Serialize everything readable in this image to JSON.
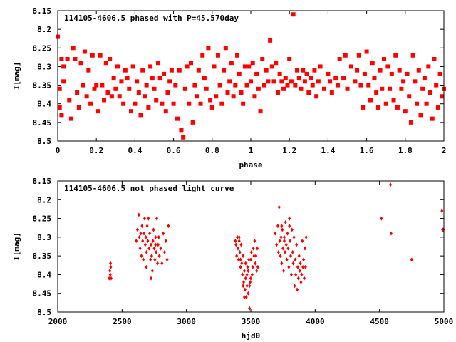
{
  "colors": {
    "points": "#ff0000",
    "axis": "#000000",
    "background": "#ffffff"
  },
  "chart_data": [
    {
      "type": "scatter",
      "title": "114105-4606.5 phased with P=45.570day",
      "xlabel": "phase",
      "ylabel": "I[mag]",
      "xlim": [
        0,
        2
      ],
      "ylim": [
        8.15,
        8.5
      ],
      "y_inverted": true,
      "grid": false,
      "x_ticks": [
        "0",
        "0.2",
        "0.4",
        "0.6",
        "0.8",
        "1",
        "1.2",
        "1.4",
        "1.6",
        "1.8",
        "2"
      ],
      "y_ticks": [
        "8.15",
        "8.2",
        "8.25",
        "8.3",
        "8.35",
        "8.4",
        "8.45",
        "8.5"
      ],
      "marker": "square",
      "points": [
        [
          0.0,
          8.22
        ],
        [
          0.01,
          8.36
        ],
        [
          0.01,
          8.41
        ],
        [
          0.02,
          8.28
        ],
        [
          0.02,
          8.43
        ],
        [
          0.03,
          8.3
        ],
        [
          0.03,
          8.34
        ],
        [
          0.05,
          8.28
        ],
        [
          0.06,
          8.39
        ],
        [
          0.07,
          8.44
        ],
        [
          0.08,
          8.25
        ],
        [
          0.09,
          8.28
        ],
        [
          0.1,
          8.37
        ],
        [
          0.11,
          8.41
        ],
        [
          0.12,
          8.29
        ],
        [
          0.13,
          8.35
        ],
        [
          0.14,
          8.26
        ],
        [
          0.15,
          8.38
        ],
        [
          0.16,
          8.31
        ],
        [
          0.17,
          8.4
        ],
        [
          0.18,
          8.27
        ],
        [
          0.19,
          8.36
        ],
        [
          0.2,
          8.35
        ],
        [
          0.21,
          8.42
        ],
        [
          0.22,
          8.27
        ],
        [
          0.23,
          8.35
        ],
        [
          0.24,
          8.39
        ],
        [
          0.25,
          8.29
        ],
        [
          0.26,
          8.37
        ],
        [
          0.27,
          8.28
        ],
        [
          0.28,
          8.38
        ],
        [
          0.29,
          8.33
        ],
        [
          0.3,
          8.36
        ],
        [
          0.31,
          8.3
        ],
        [
          0.32,
          8.38
        ],
        [
          0.33,
          8.34
        ],
        [
          0.34,
          8.4
        ],
        [
          0.35,
          8.31
        ],
        [
          0.36,
          8.33
        ],
        [
          0.37,
          8.36
        ],
        [
          0.38,
          8.42
        ],
        [
          0.39,
          8.3
        ],
        [
          0.4,
          8.4
        ],
        [
          0.41,
          8.34
        ],
        [
          0.42,
          8.37
        ],
        [
          0.43,
          8.43
        ],
        [
          0.44,
          8.31
        ],
        [
          0.45,
          8.38
        ],
        [
          0.46,
          8.35
        ],
        [
          0.47,
          8.41
        ],
        [
          0.48,
          8.3
        ],
        [
          0.49,
          8.33
        ],
        [
          0.5,
          8.36
        ],
        [
          0.51,
          8.39
        ],
        [
          0.52,
          8.29
        ],
        [
          0.53,
          8.33
        ],
        [
          0.54,
          8.4
        ],
        [
          0.55,
          8.32
        ],
        [
          0.56,
          8.42
        ],
        [
          0.57,
          8.37
        ],
        [
          0.58,
          8.34
        ],
        [
          0.59,
          8.31
        ],
        [
          0.6,
          8.4
        ],
        [
          0.61,
          8.35
        ],
        [
          0.62,
          8.44
        ],
        [
          0.63,
          8.31
        ],
        [
          0.64,
          8.47
        ],
        [
          0.65,
          8.49
        ],
        [
          0.66,
          8.36
        ],
        [
          0.67,
          8.3
        ],
        [
          0.68,
          8.4
        ],
        [
          0.69,
          8.29
        ],
        [
          0.7,
          8.45
        ],
        [
          0.71,
          8.35
        ],
        [
          0.72,
          8.38
        ],
        [
          0.73,
          8.31
        ],
        [
          0.74,
          8.4
        ],
        [
          0.75,
          8.27
        ],
        [
          0.76,
          8.33
        ],
        [
          0.77,
          8.36
        ],
        [
          0.78,
          8.25
        ],
        [
          0.79,
          8.39
        ],
        [
          0.8,
          8.41
        ],
        [
          0.81,
          8.3
        ],
        [
          0.82,
          8.38
        ],
        [
          0.83,
          8.27
        ],
        [
          0.84,
          8.35
        ],
        [
          0.85,
          8.4
        ],
        [
          0.86,
          8.31
        ],
        [
          0.87,
          8.25
        ],
        [
          0.88,
          8.37
        ],
        [
          0.89,
          8.34
        ],
        [
          0.9,
          8.29
        ],
        [
          0.91,
          8.38
        ],
        [
          0.92,
          8.35
        ],
        [
          0.93,
          8.27
        ],
        [
          0.94,
          8.32
        ],
        [
          0.95,
          8.37
        ],
        [
          0.96,
          8.4
        ],
        [
          0.97,
          8.3
        ],
        [
          0.98,
          8.35
        ],
        [
          0.99,
          8.3
        ],
        [
          1.0,
          8.34
        ],
        [
          1.01,
          8.29
        ],
        [
          1.02,
          8.38
        ],
        [
          1.03,
          8.32
        ],
        [
          1.04,
          8.36
        ],
        [
          1.05,
          8.42
        ],
        [
          1.06,
          8.28
        ],
        [
          1.07,
          8.35
        ],
        [
          1.08,
          8.31
        ],
        [
          1.09,
          8.34
        ],
        [
          1.1,
          8.23
        ],
        [
          1.11,
          8.3
        ],
        [
          1.12,
          8.34
        ],
        [
          1.13,
          8.29
        ],
        [
          1.14,
          8.37
        ],
        [
          1.15,
          8.32
        ],
        [
          1.16,
          8.34
        ],
        [
          1.17,
          8.36
        ],
        [
          1.18,
          8.33
        ],
        [
          1.19,
          8.35
        ],
        [
          1.2,
          8.28
        ],
        [
          1.21,
          8.34
        ],
        [
          1.22,
          8.16
        ],
        [
          1.23,
          8.35
        ],
        [
          1.24,
          8.31
        ],
        [
          1.25,
          8.33
        ],
        [
          1.26,
          8.36
        ],
        [
          1.27,
          8.31
        ],
        [
          1.28,
          8.34
        ],
        [
          1.29,
          8.32
        ],
        [
          1.3,
          8.37
        ],
        [
          1.31,
          8.33
        ],
        [
          1.32,
          8.35
        ],
        [
          1.33,
          8.31
        ],
        [
          1.34,
          8.38
        ],
        [
          1.35,
          8.34
        ],
        [
          1.36,
          8.3
        ],
        [
          1.38,
          8.36
        ],
        [
          1.4,
          8.32
        ],
        [
          1.41,
          8.34
        ],
        [
          1.42,
          8.37
        ],
        [
          1.44,
          8.33
        ],
        [
          1.45,
          8.35
        ],
        [
          1.46,
          8.28
        ],
        [
          1.48,
          8.33
        ],
        [
          1.49,
          8.27
        ],
        [
          1.5,
          8.36
        ],
        [
          1.52,
          8.3
        ],
        [
          1.54,
          8.34
        ],
        [
          1.55,
          8.31
        ],
        [
          1.56,
          8.27
        ],
        [
          1.57,
          8.35
        ],
        [
          1.58,
          8.41
        ],
        [
          1.59,
          8.32
        ],
        [
          1.6,
          8.26
        ],
        [
          1.61,
          8.35
        ],
        [
          1.62,
          8.39
        ],
        [
          1.63,
          8.29
        ],
        [
          1.64,
          8.33
        ],
        [
          1.65,
          8.37
        ],
        [
          1.66,
          8.41
        ],
        [
          1.67,
          8.31
        ],
        [
          1.68,
          8.36
        ],
        [
          1.69,
          8.28
        ],
        [
          1.7,
          8.4
        ],
        [
          1.71,
          8.3
        ],
        [
          1.72,
          8.36
        ],
        [
          1.73,
          8.32
        ],
        [
          1.74,
          8.39
        ],
        [
          1.75,
          8.27
        ],
        [
          1.76,
          8.41
        ],
        [
          1.77,
          8.31
        ],
        [
          1.78,
          8.36
        ],
        [
          1.79,
          8.34
        ],
        [
          1.8,
          8.42
        ],
        [
          1.81,
          8.32
        ],
        [
          1.82,
          8.38
        ],
        [
          1.83,
          8.45
        ],
        [
          1.84,
          8.27
        ],
        [
          1.85,
          8.34
        ],
        [
          1.86,
          8.4
        ],
        [
          1.87,
          8.31
        ],
        [
          1.88,
          8.43
        ],
        [
          1.89,
          8.36
        ],
        [
          1.9,
          8.33
        ],
        [
          1.91,
          8.4
        ],
        [
          1.92,
          8.3
        ],
        [
          1.93,
          8.37
        ],
        [
          1.94,
          8.44
        ],
        [
          1.95,
          8.28
        ],
        [
          1.96,
          8.35
        ],
        [
          1.97,
          8.41
        ],
        [
          1.98,
          8.32
        ],
        [
          1.99,
          8.38
        ],
        [
          2.0,
          8.36
        ]
      ]
    },
    {
      "type": "scatter",
      "title": "114105-4606.5 not phased light curve",
      "xlabel": "hjd0",
      "ylabel": "I[mag]",
      "xlim": [
        2000,
        5000
      ],
      "ylim": [
        8.15,
        8.5
      ],
      "y_inverted": true,
      "grid": false,
      "x_ticks": [
        "2000",
        "2500",
        "3000",
        "3500",
        "4000",
        "4500",
        "5000"
      ],
      "y_ticks": [
        "8.15",
        "8.2",
        "8.25",
        "8.3",
        "8.35",
        "8.4",
        "8.45",
        "8.5"
      ],
      "marker": "diamond",
      "points": [
        [
          2400,
          8.41
        ],
        [
          2405,
          8.39
        ],
        [
          2408,
          8.4
        ],
        [
          2410,
          8.37
        ],
        [
          2412,
          8.38
        ],
        [
          2415,
          8.41
        ],
        [
          2610,
          8.31
        ],
        [
          2620,
          8.28
        ],
        [
          2630,
          8.24
        ],
        [
          2635,
          8.3
        ],
        [
          2640,
          8.33
        ],
        [
          2645,
          8.29
        ],
        [
          2650,
          8.35
        ],
        [
          2655,
          8.27
        ],
        [
          2660,
          8.31
        ],
        [
          2665,
          8.36
        ],
        [
          2670,
          8.29
        ],
        [
          2675,
          8.25
        ],
        [
          2680,
          8.32
        ],
        [
          2685,
          8.3
        ],
        [
          2690,
          8.34
        ],
        [
          2695,
          8.27
        ],
        [
          2700,
          8.31
        ],
        [
          2705,
          8.25
        ],
        [
          2710,
          8.33
        ],
        [
          2715,
          8.29
        ],
        [
          2720,
          8.36
        ],
        [
          2725,
          8.32
        ],
        [
          2730,
          8.35
        ],
        [
          2735,
          8.39
        ],
        [
          2740,
          8.31
        ],
        [
          2745,
          8.28
        ],
        [
          2750,
          8.33
        ],
        [
          2755,
          8.36
        ],
        [
          2760,
          8.3
        ],
        [
          2765,
          8.34
        ],
        [
          2770,
          8.25
        ],
        [
          2775,
          8.37
        ],
        [
          2780,
          8.32
        ],
        [
          2785,
          8.3
        ],
        [
          2790,
          8.35
        ],
        [
          2800,
          8.33
        ],
        [
          2810,
          8.37
        ],
        [
          2820,
          8.29
        ],
        [
          2830,
          8.34
        ],
        [
          2840,
          8.31
        ],
        [
          2850,
          8.36
        ],
        [
          2860,
          8.27
        ],
        [
          2725,
          8.41
        ],
        [
          2688,
          8.38
        ],
        [
          2760,
          8.32
        ],
        [
          3380,
          8.31
        ],
        [
          3385,
          8.32
        ],
        [
          3390,
          8.35
        ],
        [
          3395,
          8.3
        ],
        [
          3400,
          8.33
        ],
        [
          3405,
          8.36
        ],
        [
          3410,
          8.31
        ],
        [
          3415,
          8.34
        ],
        [
          3420,
          8.38
        ],
        [
          3425,
          8.32
        ],
        [
          3430,
          8.37
        ],
        [
          3435,
          8.4
        ],
        [
          3440,
          8.35
        ],
        [
          3445,
          8.42
        ],
        [
          3450,
          8.39
        ],
        [
          3455,
          8.44
        ],
        [
          3460,
          8.41
        ],
        [
          3465,
          8.46
        ],
        [
          3470,
          8.43
        ],
        [
          3475,
          8.38
        ],
        [
          3480,
          8.45
        ],
        [
          3485,
          8.36
        ],
        [
          3490,
          8.49
        ],
        [
          3495,
          8.42
        ],
        [
          3500,
          8.36
        ],
        [
          3505,
          8.34
        ],
        [
          3510,
          8.4
        ],
        [
          3515,
          8.38
        ],
        [
          3520,
          8.33
        ],
        [
          3525,
          8.35
        ],
        [
          3530,
          8.31
        ],
        [
          3535,
          8.37
        ],
        [
          3540,
          8.35
        ],
        [
          3545,
          8.39
        ],
        [
          3550,
          8.33
        ],
        [
          3555,
          8.38
        ],
        [
          3440,
          8.43
        ],
        [
          3450,
          8.46
        ],
        [
          3460,
          8.37
        ],
        [
          3470,
          8.4
        ],
        [
          3480,
          8.39
        ],
        [
          3490,
          8.43
        ],
        [
          3500,
          8.41
        ],
        [
          3420,
          8.36
        ],
        [
          3410,
          8.3
        ],
        [
          3690,
          8.29
        ],
        [
          3700,
          8.32
        ],
        [
          3710,
          8.27
        ],
        [
          3715,
          8.34
        ],
        [
          3720,
          8.22
        ],
        [
          3725,
          8.31
        ],
        [
          3730,
          8.35
        ],
        [
          3735,
          8.3
        ],
        [
          3740,
          8.37
        ],
        [
          3745,
          8.28
        ],
        [
          3750,
          8.33
        ],
        [
          3755,
          8.39
        ],
        [
          3760,
          8.31
        ],
        [
          3765,
          8.34
        ],
        [
          3770,
          8.26
        ],
        [
          3775,
          8.32
        ],
        [
          3780,
          8.36
        ],
        [
          3785,
          8.29
        ],
        [
          3790,
          8.33
        ],
        [
          3795,
          8.38
        ],
        [
          3800,
          8.25
        ],
        [
          3805,
          8.31
        ],
        [
          3810,
          8.35
        ],
        [
          3815,
          8.4
        ],
        [
          3820,
          8.28
        ],
        [
          3825,
          8.34
        ],
        [
          3830,
          8.37
        ],
        [
          3835,
          8.3
        ],
        [
          3840,
          8.43
        ],
        [
          3845,
          8.36
        ],
        [
          3850,
          8.4
        ],
        [
          3855,
          8.32
        ],
        [
          3860,
          8.44
        ],
        [
          3865,
          8.38
        ],
        [
          3870,
          8.41
        ],
        [
          3875,
          8.35
        ],
        [
          3880,
          8.39
        ],
        [
          3885,
          8.37
        ],
        [
          3890,
          8.42
        ],
        [
          3895,
          8.4
        ],
        [
          3900,
          8.31
        ],
        [
          3905,
          8.38
        ],
        [
          3910,
          8.36
        ],
        [
          3915,
          8.41
        ],
        [
          3920,
          8.33
        ],
        [
          3925,
          8.38
        ],
        [
          3930,
          8.3
        ],
        [
          3740,
          8.27
        ],
        [
          3760,
          8.3
        ],
        [
          3800,
          8.27
        ],
        [
          4515,
          8.25
        ],
        [
          4585,
          8.16
        ],
        [
          4590,
          8.29
        ],
        [
          4750,
          8.36
        ],
        [
          4985,
          8.23
        ],
        [
          4990,
          8.28
        ],
        [
          4995,
          8.28
        ]
      ]
    }
  ]
}
